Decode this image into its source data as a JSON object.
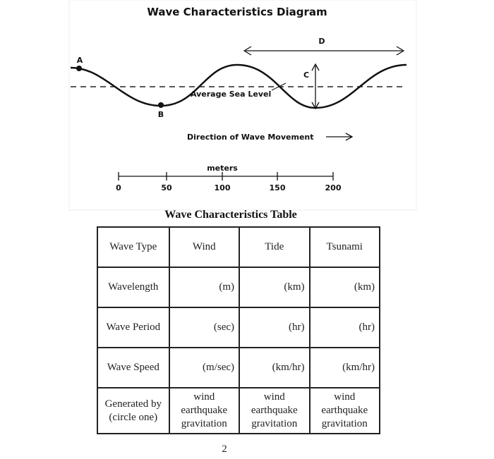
{
  "diagram": {
    "title": "Wave Characteristics Diagram",
    "labels": {
      "a": "A",
      "b": "B",
      "c": "C",
      "d": "D"
    },
    "sea_level": "Average Sea Level",
    "direction": "Direction of Wave Movement",
    "scale": {
      "unit": "meters",
      "ticks": [
        0,
        50,
        100,
        150,
        200
      ]
    }
  },
  "table": {
    "title": "Wave Characteristics Table",
    "header": [
      "Wave Type",
      "Wind",
      "Tide",
      "Tsunami"
    ],
    "rows": [
      [
        "Wavelength",
        "(m)",
        "(km)",
        "(km)"
      ],
      [
        "Wave Period",
        "(sec)",
        "(hr)",
        "(hr)"
      ],
      [
        "Wave Speed",
        "(m/sec)",
        "(km/hr)",
        "(km/hr)"
      ],
      [
        [
          "Generated by",
          "(circle one)"
        ],
        [
          "wind",
          "earthquake",
          "gravitation"
        ],
        [
          "wind",
          "earthquake",
          "gravitation"
        ],
        [
          "wind",
          "earthquake",
          "gravitation"
        ]
      ]
    ]
  },
  "page_number": "2"
}
